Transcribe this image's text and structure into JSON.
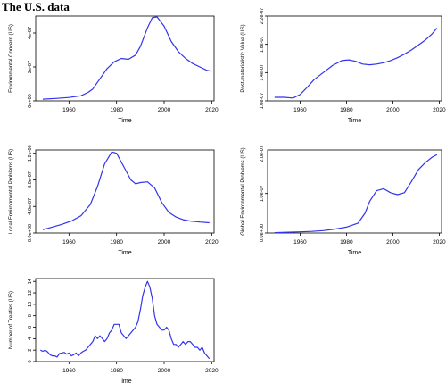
{
  "figure_title": "The U.S. data",
  "colors": {
    "line": "#3333ee",
    "axis": "#000000"
  },
  "chart_data": [
    {
      "type": "line",
      "xlabel": "Time",
      "ylabel": "Environmental Concern (US)",
      "xlim": [
        1946,
        2021
      ],
      "ylim": [
        0,
        5e-07
      ],
      "xticks": [
        1960,
        1980,
        2000,
        2020
      ],
      "yticks": [
        0,
        2e-07,
        4e-07
      ],
      "ytick_labels": [
        "0e+00",
        "2e-07",
        "4e-07"
      ],
      "grid": false,
      "series": [
        {
          "x": [
            1949,
            1955,
            1960,
            1965,
            1968,
            1970,
            1973,
            1976,
            1979,
            1982,
            1985,
            1988,
            1990,
            1993,
            1995,
            1997,
            2000,
            2003,
            2006,
            2009,
            2012,
            2015,
            2018,
            2020
          ],
          "y": [
            1e-08,
            1.5e-08,
            2e-08,
            3e-08,
            5e-08,
            7e-08,
            1.3e-07,
            1.9e-07,
            2.3e-07,
            2.5e-07,
            2.45e-07,
            2.7e-07,
            3.2e-07,
            4.3e-07,
            4.9e-07,
            4.95e-07,
            4.4e-07,
            3.5e-07,
            2.9e-07,
            2.5e-07,
            2.2e-07,
            2e-07,
            1.8e-07,
            1.75e-07
          ]
        }
      ]
    },
    {
      "type": "line",
      "xlabel": "Time",
      "ylabel": "Post-materialistic Value (US)",
      "xlim": [
        1946,
        2021
      ],
      "ylim": [
        1e-07,
        2.2e-07
      ],
      "xticks": [
        1960,
        1980,
        2000,
        2020
      ],
      "yticks": [
        1e-07,
        1.4e-07,
        1.8e-07,
        2.2e-07
      ],
      "ytick_labels": [
        "1.0e-07",
        "1.4e-07",
        "1.8e-07",
        "2.2e-07"
      ],
      "grid": false,
      "series": [
        {
          "x": [
            1949,
            1953,
            1957,
            1960,
            1963,
            1966,
            1970,
            1974,
            1978,
            1981,
            1984,
            1987,
            1990,
            1993,
            1996,
            1999,
            2002,
            2005,
            2008,
            2011,
            2014,
            2017,
            2019
          ],
          "y": [
            1.05e-07,
            1.05e-07,
            1.04e-07,
            1.09e-07,
            1.19e-07,
            1.3e-07,
            1.4e-07,
            1.5e-07,
            1.57e-07,
            1.58e-07,
            1.56e-07,
            1.52e-07,
            1.51e-07,
            1.52e-07,
            1.54e-07,
            1.57e-07,
            1.61e-07,
            1.66e-07,
            1.72e-07,
            1.79e-07,
            1.86e-07,
            1.95e-07,
            2.03e-07
          ]
        }
      ]
    },
    {
      "type": "line",
      "xlabel": "Time",
      "ylabel": "Local Environmental Problems (US)",
      "xlim": [
        1946,
        2021
      ],
      "ylim": [
        0,
        1.25e-06
      ],
      "xticks": [
        1960,
        1980,
        2000,
        2020
      ],
      "yticks": [
        0,
        4e-07,
        8e-07,
        1.2e-06
      ],
      "ytick_labels": [
        "0.0e+00",
        "4.0e-07",
        "8.0e-07",
        "1.2e-06"
      ],
      "grid": false,
      "series": [
        {
          "x": [
            1949,
            1953,
            1957,
            1961,
            1965,
            1969,
            1972,
            1975,
            1978,
            1980,
            1983,
            1986,
            1988,
            1990,
            1993,
            1996,
            1999,
            2002,
            2005,
            2008,
            2011,
            2015,
            2019
          ],
          "y": [
            5e-08,
            9e-08,
            1.3e-07,
            1.8e-07,
            2.6e-07,
            4.3e-07,
            7e-07,
            1.04e-06,
            1.22e-06,
            1.2e-06,
            1e-06,
            8e-07,
            7.4e-07,
            7.6e-07,
            7.7e-07,
            6.8e-07,
            4.6e-07,
            3.1e-07,
            2.4e-07,
            2e-07,
            1.8e-07,
            1.65e-07,
            1.55e-07
          ]
        }
      ]
    },
    {
      "type": "line",
      "xlabel": "Time",
      "ylabel": "Global Environmental Problems (US)",
      "xlim": [
        1946,
        2021
      ],
      "ylim": [
        0,
        2.1e-07
      ],
      "xticks": [
        1960,
        1980,
        2000,
        2020
      ],
      "yticks": [
        0,
        1e-07,
        2e-07
      ],
      "ytick_labels": [
        "0.0e+00",
        "1.0e-07",
        "2.0e-07"
      ],
      "grid": false,
      "series": [
        {
          "x": [
            1949,
            1955,
            1960,
            1965,
            1970,
            1975,
            1980,
            1985,
            1988,
            1990,
            1993,
            1996,
            1999,
            2002,
            2005,
            2008,
            2011,
            2014,
            2017,
            2019
          ],
          "y": [
            1e-09,
            2e-09,
            3e-09,
            4e-09,
            6e-09,
            1e-08,
            1.5e-08,
            2.5e-08,
            5e-08,
            8e-08,
            1.07e-07,
            1.12e-07,
            1.02e-07,
            9.7e-08,
            1.02e-07,
            1.3e-07,
            1.6e-07,
            1.78e-07,
            1.92e-07,
            1.98e-07
          ]
        }
      ]
    },
    {
      "type": "line",
      "xlabel": "Time",
      "ylabel": "Number of Treaties (US)",
      "xlim": [
        1946,
        2021
      ],
      "ylim": [
        0,
        14.5
      ],
      "xticks": [
        1960,
        1980,
        2000,
        2020
      ],
      "yticks": [
        0,
        2,
        4,
        6,
        8,
        10,
        12,
        14
      ],
      "ytick_labels": [
        "0",
        "2",
        "4",
        "6",
        "8",
        "10",
        "12",
        "14"
      ],
      "grid": false,
      "series": [
        {
          "x": [
            1948,
            1949,
            1950,
            1951,
            1952,
            1953,
            1954,
            1955,
            1956,
            1957,
            1958,
            1959,
            1960,
            1961,
            1962,
            1963,
            1964,
            1965,
            1966,
            1967,
            1968,
            1969,
            1970,
            1971,
            1972,
            1973,
            1974,
            1975,
            1976,
            1977,
            1978,
            1979,
            1980,
            1981,
            1982,
            1983,
            1984,
            1985,
            1986,
            1987,
            1988,
            1989,
            1990,
            1991,
            1992,
            1993,
            1994,
            1995,
            1996,
            1997,
            1998,
            1999,
            2000,
            2001,
            2002,
            2003,
            2004,
            2005,
            2006,
            2007,
            2008,
            2009,
            2010,
            2011,
            2012,
            2013,
            2014,
            2015,
            2016,
            2017,
            2018,
            2019
          ],
          "y": [
            2.0,
            1.8,
            2.0,
            1.7,
            1.2,
            1.0,
            1.0,
            0.8,
            1.4,
            1.5,
            1.6,
            1.3,
            1.5,
            1.0,
            1.2,
            1.5,
            1.0,
            1.5,
            1.8,
            2.0,
            2.5,
            3.0,
            3.5,
            4.5,
            4.0,
            4.5,
            4.0,
            3.5,
            4.0,
            5.0,
            5.5,
            6.5,
            6.5,
            6.5,
            5.0,
            4.5,
            4.0,
            4.5,
            5.0,
            5.5,
            6.0,
            7.0,
            9.0,
            11.5,
            13.0,
            14.0,
            13.0,
            11.0,
            8.0,
            6.5,
            6.0,
            5.5,
            5.5,
            6.0,
            5.5,
            4.0,
            3.0,
            3.0,
            2.5,
            3.0,
            3.5,
            3.0,
            3.5,
            3.5,
            3.0,
            2.5,
            2.5,
            2.0,
            2.5,
            1.5,
            1.0,
            0.5
          ]
        }
      ]
    }
  ]
}
